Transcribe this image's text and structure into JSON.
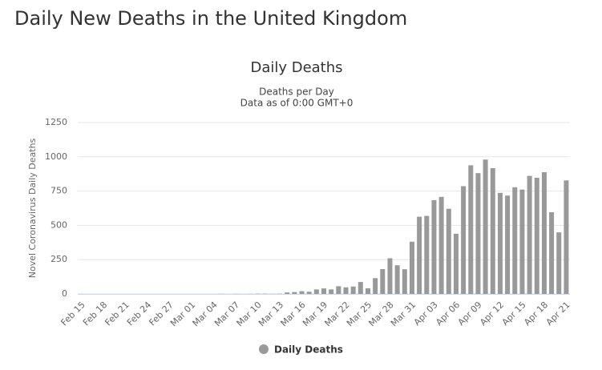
{
  "heading": "Daily New Deaths in the United Kingdom",
  "chart_data": {
    "type": "bar",
    "title": "Daily Deaths",
    "subtitle": [
      "Deaths per Day",
      "Data as of 0:00 GMT+0"
    ],
    "y_label": "Novel Coronavirus Daily Deaths",
    "categories": [
      "Feb 15",
      null,
      null,
      "Feb 18",
      null,
      null,
      "Feb 21",
      null,
      null,
      "Feb 24",
      null,
      null,
      "Feb 27",
      null,
      null,
      "Mar 01",
      null,
      null,
      "Mar 04",
      null,
      null,
      "Mar 07",
      null,
      null,
      "Mar 10",
      null,
      null,
      "Mar 13",
      null,
      null,
      "Mar 16",
      null,
      null,
      "Mar 19",
      null,
      null,
      "Mar 22",
      null,
      null,
      "Mar 25",
      null,
      null,
      "Mar 28",
      null,
      null,
      "Mar 31",
      null,
      null,
      "Apr 03",
      null,
      null,
      "Apr 06",
      null,
      null,
      "Apr 09",
      null,
      null,
      "Apr 12",
      null,
      null,
      "Apr 15",
      null,
      null,
      "Apr 18",
      null,
      null,
      "Apr 21"
    ],
    "series": [
      {
        "name": "Daily Deaths",
        "color": "#999999",
        "values": [
          0,
          0,
          0,
          0,
          0,
          0,
          0,
          0,
          0,
          0,
          0,
          0,
          0,
          0,
          0,
          0,
          0,
          0,
          0,
          1,
          0,
          1,
          0,
          1,
          2,
          2,
          1,
          2,
          11,
          14,
          20,
          16,
          33,
          40,
          33,
          56,
          48,
          54,
          87,
          41,
          115,
          181,
          260,
          209,
          180,
          381,
          563,
          569,
          684,
          708,
          621,
          439,
          786,
          938,
          881,
          980,
          917,
          737,
          717,
          778,
          761,
          861,
          847,
          888,
          596,
          449,
          828
        ]
      }
    ],
    "ylim": [
      0,
      1250
    ],
    "yticks": [
      0,
      250,
      500,
      750,
      1000,
      1250
    ],
    "grid": true
  }
}
